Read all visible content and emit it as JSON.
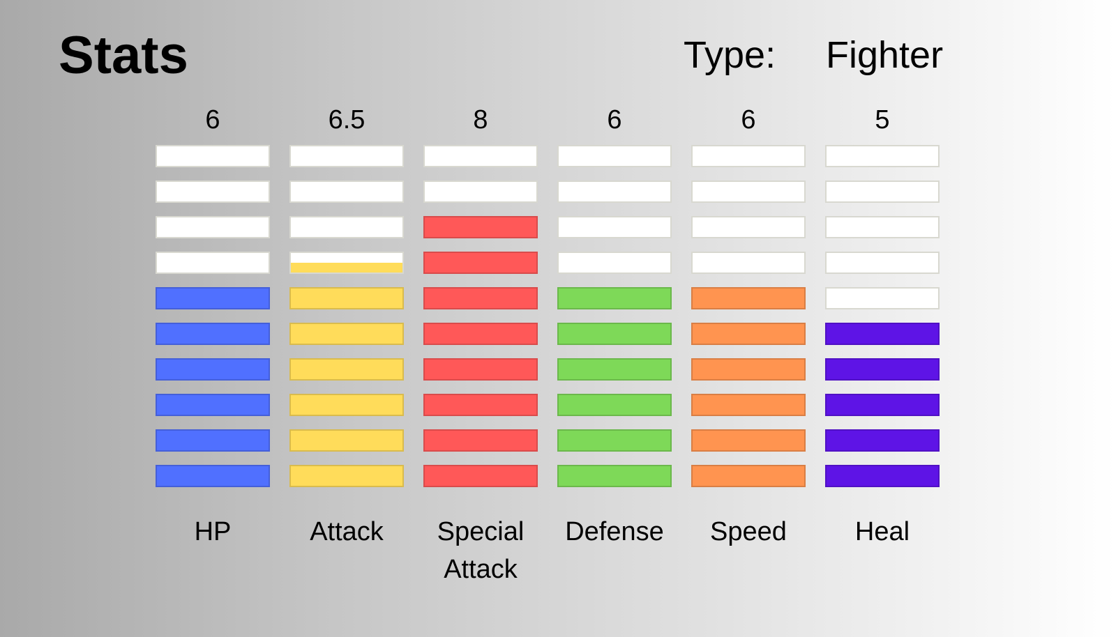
{
  "header": {
    "title": "Stats",
    "type_label": "Type:",
    "type_value": "Fighter"
  },
  "chart_data": {
    "type": "bar",
    "categories": [
      "HP",
      "Attack",
      "Special Attack",
      "Defense",
      "Speed",
      "Heal"
    ],
    "values": [
      6,
      6.5,
      8,
      6,
      6,
      5
    ],
    "value_labels": [
      "6",
      "6.5",
      "8",
      "6",
      "6",
      "5"
    ],
    "ylim": [
      0,
      10
    ],
    "segments": 10,
    "colors": [
      "#5070ff",
      "#ffdc5a",
      "#ff5858",
      "#7ed958",
      "#ff9450",
      "#5e14e6"
    ],
    "label_lines": [
      [
        "HP"
      ],
      [
        "Attack"
      ],
      [
        "Special",
        "Attack"
      ],
      [
        "Defense"
      ],
      [
        "Speed"
      ],
      [
        "Heal"
      ]
    ]
  }
}
